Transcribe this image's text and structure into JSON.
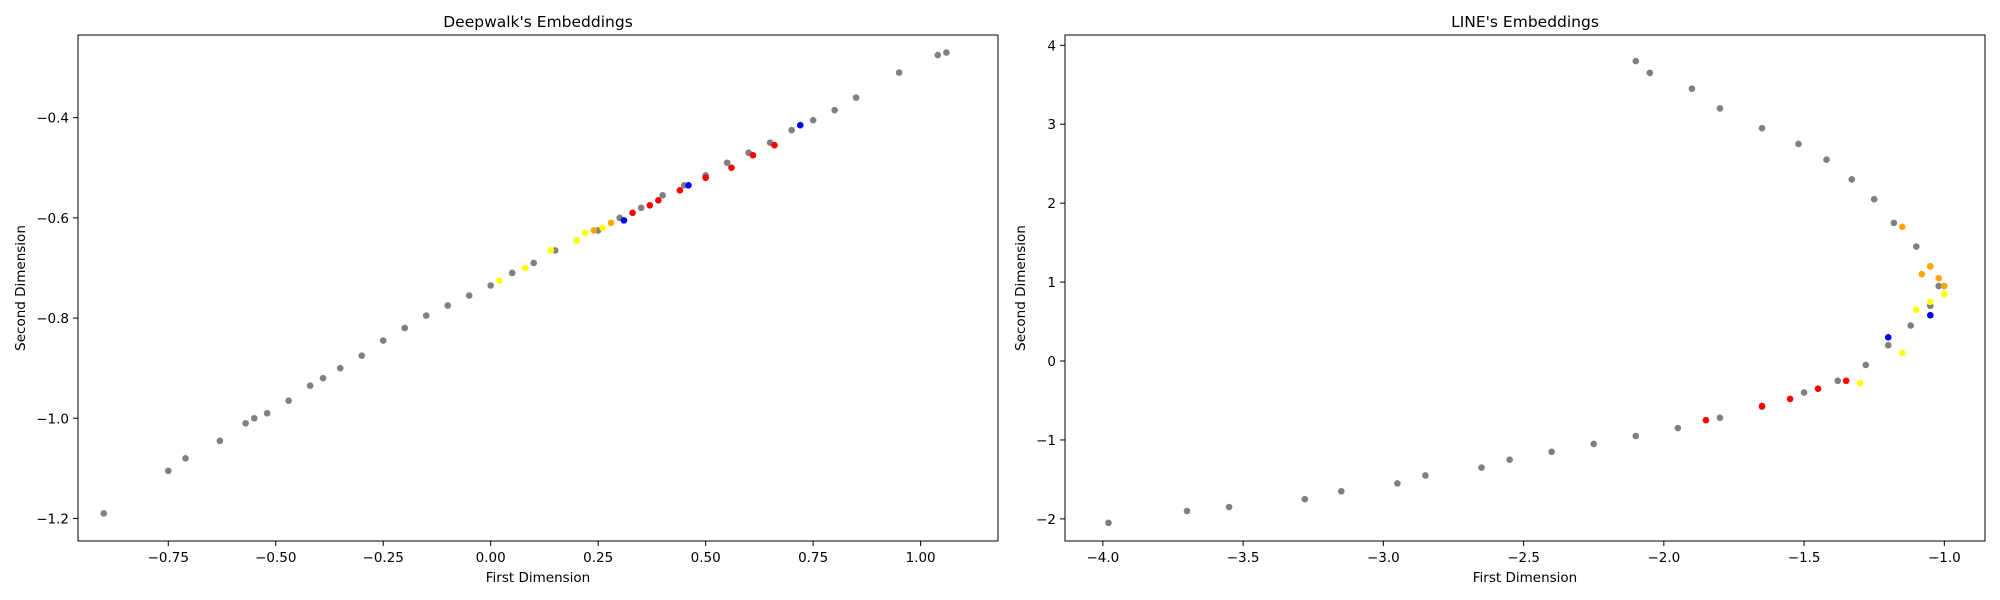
{
  "chart_data": [
    {
      "type": "scatter",
      "title": "Deepwalk's Embeddings",
      "xlabel": "First Dimension",
      "ylabel": "Second Dimension",
      "xlim": [
        -0.96,
        1.18
      ],
      "ylim": [
        -1.245,
        -0.235
      ],
      "xticks": [
        -0.75,
        -0.5,
        -0.25,
        0.0,
        0.25,
        0.5,
        0.75,
        1.0
      ],
      "xtick_labels": [
        "−0.75",
        "−0.50",
        "−0.25",
        "0.00",
        "0.25",
        "0.50",
        "0.75",
        "1.00"
      ],
      "yticks": [
        -1.2,
        -1.0,
        -0.8,
        -0.6,
        -0.4
      ],
      "ytick_labels": [
        "−1.2",
        "−1.0",
        "−0.8",
        "−0.6",
        "−0.4"
      ],
      "grid": false,
      "series": [
        {
          "color": "#808080",
          "marker": "dot",
          "points": [
            [
              -0.9,
              -1.19
            ],
            [
              -0.75,
              -1.105
            ],
            [
              -0.71,
              -1.08
            ],
            [
              -0.63,
              -1.045
            ],
            [
              -0.57,
              -1.01
            ],
            [
              -0.55,
              -1.0
            ],
            [
              -0.52,
              -0.99
            ],
            [
              -0.47,
              -0.965
            ],
            [
              -0.42,
              -0.935
            ],
            [
              -0.39,
              -0.92
            ],
            [
              -0.35,
              -0.9
            ],
            [
              -0.3,
              -0.875
            ],
            [
              -0.25,
              -0.845
            ],
            [
              -0.2,
              -0.82
            ],
            [
              -0.15,
              -0.795
            ],
            [
              -0.1,
              -0.775
            ],
            [
              -0.05,
              -0.755
            ],
            [
              0.0,
              -0.735
            ],
            [
              0.05,
              -0.71
            ],
            [
              0.1,
              -0.69
            ],
            [
              0.15,
              -0.665
            ],
            [
              0.2,
              -0.645
            ],
            [
              0.25,
              -0.625
            ],
            [
              0.3,
              -0.6
            ],
            [
              0.35,
              -0.58
            ],
            [
              0.4,
              -0.555
            ],
            [
              0.45,
              -0.535
            ],
            [
              0.5,
              -0.515
            ],
            [
              0.55,
              -0.49
            ],
            [
              0.6,
              -0.47
            ],
            [
              0.65,
              -0.45
            ],
            [
              0.7,
              -0.425
            ],
            [
              0.75,
              -0.405
            ],
            [
              0.8,
              -0.385
            ],
            [
              0.85,
              -0.36
            ],
            [
              0.95,
              -0.31
            ],
            [
              1.04,
              -0.275
            ],
            [
              1.06,
              -0.27
            ]
          ]
        },
        {
          "color": "#ff0000",
          "marker": "dot",
          "points": [
            [
              0.33,
              -0.59
            ],
            [
              0.37,
              -0.575
            ],
            [
              0.39,
              -0.565
            ],
            [
              0.44,
              -0.545
            ],
            [
              0.5,
              -0.52
            ],
            [
              0.56,
              -0.5
            ],
            [
              0.61,
              -0.475
            ],
            [
              0.66,
              -0.455
            ]
          ]
        },
        {
          "color": "#0000ff",
          "marker": "dot",
          "points": [
            [
              0.31,
              -0.605
            ],
            [
              0.46,
              -0.535
            ],
            [
              0.72,
              -0.415
            ]
          ]
        },
        {
          "color": "#ffff00",
          "marker": "dot",
          "points": [
            [
              0.02,
              -0.725
            ],
            [
              0.08,
              -0.7
            ],
            [
              0.14,
              -0.665
            ],
            [
              0.2,
              -0.645
            ],
            [
              0.22,
              -0.63
            ],
            [
              0.26,
              -0.62
            ]
          ]
        },
        {
          "color": "#ffa500",
          "marker": "dot",
          "points": [
            [
              0.24,
              -0.625
            ],
            [
              0.28,
              -0.61
            ]
          ]
        }
      ]
    },
    {
      "type": "scatter",
      "title": "LINE's Embeddings",
      "xlabel": "First Dimension",
      "ylabel": "Second Dimension",
      "xlim": [
        -4.135,
        -0.855
      ],
      "ylim": [
        -2.28,
        4.13
      ],
      "xticks": [
        -4.0,
        -3.5,
        -3.0,
        -2.5,
        -2.0,
        -1.5,
        -1.0
      ],
      "xtick_labels": [
        "−4.0",
        "−3.5",
        "−3.0",
        "−2.5",
        "−2.0",
        "−1.5",
        "−1.0"
      ],
      "yticks": [
        -2,
        -1,
        0,
        1,
        2,
        3,
        4
      ],
      "ytick_labels": [
        "−2",
        "−1",
        "0",
        "1",
        "2",
        "3",
        "4"
      ],
      "grid": false,
      "series": [
        {
          "color": "#808080",
          "marker": "dot",
          "points": [
            [
              -3.98,
              -2.05
            ],
            [
              -3.7,
              -1.9
            ],
            [
              -3.55,
              -1.85
            ],
            [
              -3.28,
              -1.75
            ],
            [
              -3.15,
              -1.65
            ],
            [
              -2.95,
              -1.55
            ],
            [
              -2.85,
              -1.45
            ],
            [
              -2.65,
              -1.35
            ],
            [
              -2.55,
              -1.25
            ],
            [
              -2.4,
              -1.15
            ],
            [
              -2.25,
              -1.05
            ],
            [
              -2.1,
              -0.95
            ],
            [
              -1.95,
              -0.85
            ],
            [
              -1.8,
              -0.72
            ],
            [
              -1.65,
              -0.58
            ],
            [
              -1.5,
              -0.4
            ],
            [
              -1.38,
              -0.25
            ],
            [
              -1.28,
              -0.05
            ],
            [
              -1.2,
              0.2
            ],
            [
              -1.12,
              0.45
            ],
            [
              -1.05,
              0.7
            ],
            [
              -1.02,
              0.95
            ],
            [
              -1.05,
              1.2
            ],
            [
              -1.1,
              1.45
            ],
            [
              -1.18,
              1.75
            ],
            [
              -1.25,
              2.05
            ],
            [
              -1.33,
              2.3
            ],
            [
              -1.42,
              2.55
            ],
            [
              -1.52,
              2.75
            ],
            [
              -1.65,
              2.95
            ],
            [
              -1.8,
              3.2
            ],
            [
              -1.9,
              3.45
            ],
            [
              -2.05,
              3.65
            ],
            [
              -2.1,
              3.8
            ]
          ]
        },
        {
          "color": "#ff0000",
          "marker": "dot",
          "points": [
            [
              -1.85,
              -0.75
            ],
            [
              -1.65,
              -0.57
            ],
            [
              -1.55,
              -0.48
            ],
            [
              -1.45,
              -0.35
            ],
            [
              -1.35,
              -0.25
            ]
          ]
        },
        {
          "color": "#0000ff",
          "marker": "dot",
          "points": [
            [
              -1.2,
              0.3
            ],
            [
              -1.05,
              0.58
            ]
          ]
        },
        {
          "color": "#ffff00",
          "marker": "dot",
          "points": [
            [
              -1.3,
              -0.28
            ],
            [
              -1.15,
              0.1
            ],
            [
              -1.1,
              0.65
            ],
            [
              -1.05,
              0.75
            ],
            [
              -1.0,
              0.85
            ]
          ]
        },
        {
          "color": "#ffa500",
          "marker": "dot",
          "points": [
            [
              -1.05,
              1.2
            ],
            [
              -1.08,
              1.1
            ],
            [
              -1.15,
              1.7
            ],
            [
              -1.0,
              0.95
            ],
            [
              -1.02,
              1.05
            ]
          ]
        }
      ]
    }
  ]
}
